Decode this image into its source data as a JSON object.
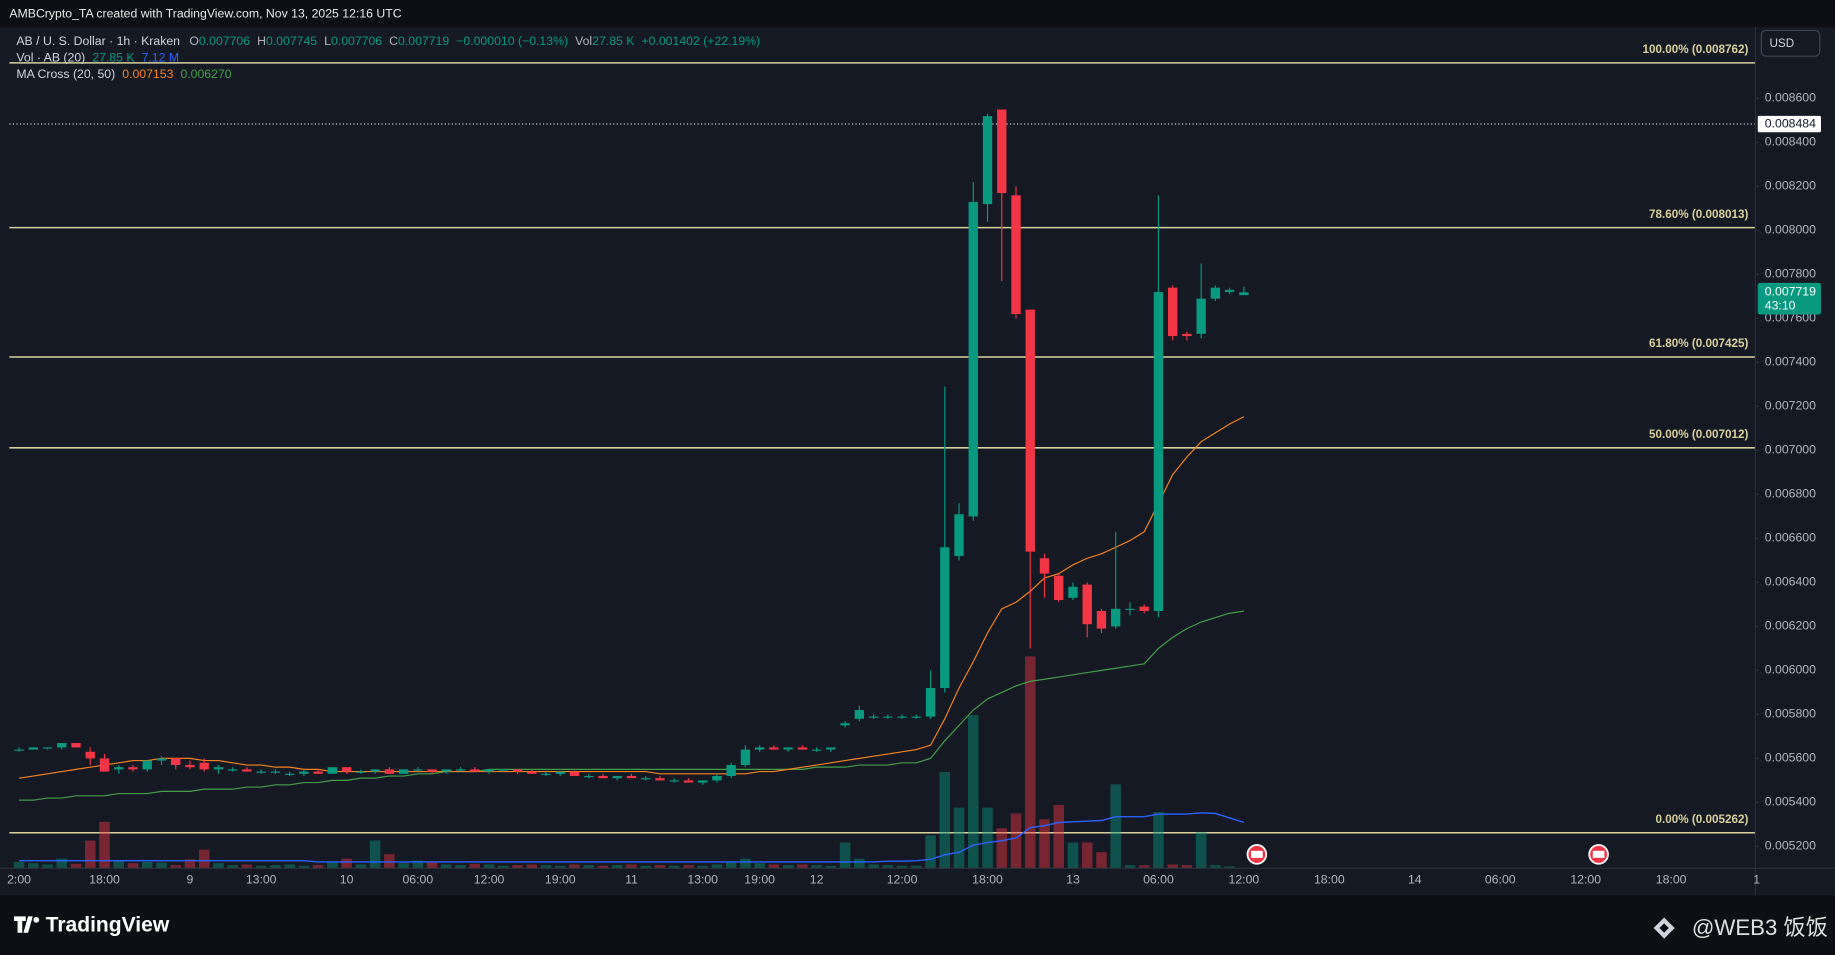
{
  "chart_data": {
    "type": "candlestick",
    "title": "AMBCrypto_TA created with TradingView.com, Nov 13, 2025 12:16 UTC",
    "legend": {
      "symbol": "AB / U. S. Dollar · 1h · Kraken",
      "o": "O",
      "h": "H",
      "l": "L",
      "c": "C",
      "change": "−0.000010 (−0.13%)",
      "vol": "Vol",
      "vol_value": "27.85 K",
      "vol_change": "+0.001402 (+22.19%)",
      "vol_study": "Vol · AB (20)",
      "vol_study_value": "27.85 K",
      "vol_study_ma": "7.12 M",
      "ma_study": "MA Cross (20, 50)",
      "ma_fast": "0.007153",
      "ma_slow": "0.006270"
    },
    "currency": "USD",
    "countdown": "43:10",
    "brand": "TradingView",
    "watermark": "@WEB3 饭饭",
    "up_color": "#089981",
    "down_color": "#f23645",
    "categories": [
      "2:00",
      null,
      null,
      null,
      null,
      null,
      "18:00",
      null,
      null,
      null,
      null,
      null,
      "9",
      null,
      null,
      null,
      null,
      "13:00",
      null,
      null,
      null,
      null,
      null,
      "10",
      null,
      null,
      null,
      null,
      "06:00",
      null,
      null,
      null,
      null,
      "12:00",
      null,
      null,
      null,
      null,
      "19:00",
      null,
      null,
      null,
      null,
      "11",
      null,
      null,
      null,
      null,
      "13:00",
      null,
      null,
      null,
      "19:00",
      null,
      null,
      null,
      "12",
      null,
      null,
      null,
      null,
      null,
      "12:00",
      null,
      null,
      null,
      null,
      null,
      "18:00",
      null,
      null,
      null,
      null,
      null,
      "13",
      null,
      null,
      null,
      null,
      null,
      "06:00",
      null,
      null,
      null,
      null,
      null,
      "12:00",
      null,
      null,
      null,
      null,
      null,
      "18:00",
      null,
      null,
      null,
      null,
      null,
      "14",
      null,
      null,
      null,
      null,
      null,
      "06:00",
      null,
      null,
      null,
      null,
      null,
      "12:00",
      null,
      null,
      null,
      null,
      null,
      "18:00",
      null,
      null,
      null,
      null,
      null,
      "1"
    ],
    "open": [
      0.00564,
      0.00564,
      0.00565,
      0.00565,
      0.00567,
      0.00563,
      0.0056,
      0.00555,
      0.00556,
      0.00555,
      0.00559,
      0.0056,
      0.00557,
      0.00558,
      0.00555,
      0.00555,
      0.00555,
      0.00554,
      0.00554,
      0.00553,
      0.00553,
      0.00554,
      0.00553,
      0.00556,
      0.00554,
      0.00554,
      0.00555,
      0.00553,
      0.00555,
      0.00555,
      0.00554,
      0.00555,
      0.00555,
      0.00554,
      0.00555,
      0.00555,
      0.00554,
      0.00553,
      0.00553,
      0.00554,
      0.00552,
      0.00552,
      0.00551,
      0.00552,
      0.00551,
      0.00551,
      0.0055,
      0.0055,
      0.00549,
      0.0055,
      0.00552,
      0.00557,
      0.00564,
      0.00565,
      0.00564,
      0.00565,
      0.00564,
      0.00564,
      0.00575,
      0.00578,
      0.00579,
      0.00579,
      0.00579,
      0.00579,
      0.00579,
      0.00592,
      0.00652,
      0.0067,
      0.00812,
      0.00855,
      0.00816,
      0.00764,
      0.00651,
      0.00643,
      0.00633,
      0.00639,
      0.00627,
      0.0062,
      0.00628,
      0.00629,
      0.00627,
      0.00774,
      0.00753,
      0.00753,
      0.00769,
      0.00772,
      0.007706,
      null,
      null,
      null,
      null,
      null,
      null,
      null,
      null,
      null,
      null,
      null,
      null,
      null,
      null,
      null,
      null,
      null,
      null,
      null,
      null,
      null,
      null,
      null,
      null,
      null,
      null,
      null,
      null,
      null,
      null,
      null,
      null,
      null,
      null,
      null,
      null
    ],
    "high": [
      0.00565,
      0.00565,
      0.00565,
      0.00567,
      0.00567,
      0.00565,
      0.00562,
      0.00557,
      0.00557,
      0.00559,
      0.00561,
      0.0056,
      0.00559,
      0.0056,
      0.00557,
      0.00556,
      0.00556,
      0.00555,
      0.00555,
      0.00554,
      0.00555,
      0.00555,
      0.00556,
      0.00556,
      0.00555,
      0.00555,
      0.00556,
      0.00555,
      0.00556,
      0.00555,
      0.00555,
      0.00556,
      0.00556,
      0.00555,
      0.00555,
      0.00555,
      0.00555,
      0.00554,
      0.00554,
      0.00554,
      0.00553,
      0.00553,
      0.00552,
      0.00553,
      0.00552,
      0.00552,
      0.00551,
      0.00551,
      0.0055,
      0.00553,
      0.00558,
      0.00566,
      0.00566,
      0.00566,
      0.00565,
      0.00566,
      0.00565,
      0.00565,
      0.00577,
      0.00584,
      0.0058,
      0.0058,
      0.0058,
      0.0058,
      0.006,
      0.00729,
      0.00676,
      0.00822,
      0.00853,
      0.00855,
      0.0082,
      0.00764,
      0.00653,
      0.00644,
      0.0064,
      0.0064,
      0.00628,
      0.00663,
      0.00631,
      0.0063,
      0.00816,
      0.00775,
      0.00754,
      0.00785,
      0.00775,
      0.00774,
      0.007745,
      null,
      null,
      null,
      null,
      null,
      null,
      null,
      null,
      null,
      null,
      null,
      null,
      null,
      null,
      null,
      null,
      null,
      null,
      null,
      null,
      null,
      null,
      null,
      null,
      null,
      null,
      null,
      null,
      null,
      null,
      null,
      null,
      null,
      null,
      null,
      null
    ],
    "low": [
      0.00563,
      0.00564,
      0.00564,
      0.00564,
      0.00565,
      0.00557,
      0.00554,
      0.00553,
      0.00554,
      0.00554,
      0.00557,
      0.00555,
      0.00555,
      0.00554,
      0.00553,
      0.00554,
      0.00554,
      0.00553,
      0.00553,
      0.00552,
      0.00552,
      0.00553,
      0.00553,
      0.00553,
      0.00553,
      0.00553,
      0.00553,
      0.00553,
      0.00554,
      0.00553,
      0.00553,
      0.00554,
      0.00554,
      0.00553,
      0.00554,
      0.00553,
      0.00553,
      0.00552,
      0.00552,
      0.00552,
      0.00551,
      0.00551,
      0.0055,
      0.00551,
      0.0055,
      0.0055,
      0.00549,
      0.00549,
      0.00548,
      0.00549,
      0.00551,
      0.00556,
      0.00563,
      0.00564,
      0.00563,
      0.00564,
      0.00563,
      0.00563,
      0.00574,
      0.00577,
      0.00578,
      0.00578,
      0.00578,
      0.00578,
      0.00578,
      0.0059,
      0.0065,
      0.00668,
      0.00804,
      0.00777,
      0.0076,
      0.0061,
      0.00633,
      0.00631,
      0.00632,
      0.00615,
      0.00617,
      0.00619,
      0.00625,
      0.00626,
      0.00624,
      0.0075,
      0.0075,
      0.00751,
      0.00768,
      0.00771,
      0.007706,
      null,
      null,
      null,
      null,
      null,
      null,
      null,
      null,
      null,
      null,
      null,
      null,
      null,
      null,
      null,
      null,
      null,
      null,
      null,
      null,
      null,
      null,
      null,
      null,
      null,
      null,
      null,
      null,
      null,
      null,
      null,
      null,
      null,
      null,
      null,
      null
    ],
    "close": [
      0.00564,
      0.00565,
      0.00565,
      0.00567,
      0.00565,
      0.0056,
      0.00554,
      0.00556,
      0.00555,
      0.00559,
      0.0056,
      0.00557,
      0.00556,
      0.00555,
      0.00556,
      0.00555,
      0.00554,
      0.00554,
      0.00554,
      0.00553,
      0.00554,
      0.00553,
      0.00556,
      0.00554,
      0.00554,
      0.00555,
      0.00553,
      0.00555,
      0.00555,
      0.00554,
      0.00555,
      0.00555,
      0.00554,
      0.00555,
      0.00555,
      0.00554,
      0.00553,
      0.00553,
      0.00554,
      0.00552,
      0.00552,
      0.00551,
      0.00552,
      0.00551,
      0.00551,
      0.0055,
      0.0055,
      0.00549,
      0.0055,
      0.00552,
      0.00557,
      0.00564,
      0.00565,
      0.00564,
      0.00565,
      0.00564,
      0.00564,
      0.00565,
      0.00576,
      0.00582,
      0.00579,
      0.00579,
      0.00579,
      0.00579,
      0.00592,
      0.00656,
      0.00671,
      0.00813,
      0.00852,
      0.00817,
      0.00762,
      0.00654,
      0.00644,
      0.00632,
      0.00638,
      0.00621,
      0.00619,
      0.00628,
      0.00628,
      0.00627,
      0.00772,
      0.00752,
      0.00752,
      0.00769,
      0.00774,
      0.00773,
      0.007719,
      null,
      null,
      null,
      null,
      null,
      null,
      null,
      null,
      null,
      null,
      null,
      null,
      null,
      null,
      null,
      null,
      null,
      null,
      null,
      null,
      null,
      null,
      null,
      null,
      null,
      null,
      null,
      null,
      null,
      null,
      null,
      null,
      null,
      null,
      null,
      null
    ],
    "volume": {
      "vlim": [
        0,
        130
      ],
      "values": [
        1.0,
        0.8,
        0.6,
        1.5,
        0.7,
        4.3,
        7.2,
        1.2,
        0.8,
        1.0,
        0.9,
        0.5,
        1.4,
        2.9,
        0.8,
        0.5,
        0.6,
        0.4,
        0.5,
        0.6,
        0.4,
        0.5,
        0.9,
        1.5,
        0.6,
        4.3,
        2.2,
        0.8,
        1.2,
        1.0,
        0.6,
        0.5,
        0.7,
        0.6,
        0.4,
        0.5,
        0.6,
        0.5,
        0.4,
        0.6,
        0.5,
        0.4,
        0.5,
        0.6,
        0.4,
        0.5,
        0.4,
        0.5,
        0.4,
        0.6,
        1.0,
        1.5,
        0.8,
        0.6,
        0.5,
        0.6,
        0.5,
        0.4,
        4.0,
        1.5,
        0.6,
        0.5,
        0.4,
        0.4,
        5.1,
        14.9,
        9.4,
        23.7,
        9.4,
        6.2,
        8.5,
        32.8,
        7.6,
        9.8,
        4.0,
        4.0,
        2.5,
        13.0,
        0.5,
        0.5,
        8.7,
        0.6,
        0.5,
        5.6,
        0.5,
        0.3,
        0.02785,
        null,
        null,
        null,
        null,
        null,
        null,
        null,
        null,
        null,
        null,
        null,
        null,
        null,
        null,
        null,
        null,
        null,
        null,
        null,
        null,
        null,
        null,
        null,
        null,
        null,
        null,
        null,
        null,
        null,
        null,
        null,
        null,
        null,
        null,
        null,
        null
      ]
    },
    "volume_ma": {
      "color": "#2962ff",
      "values": [
        1.2,
        1.2,
        1.2,
        1.2,
        1.2,
        1.2,
        1.2,
        1.2,
        1.2,
        1.2,
        1.2,
        1.2,
        1.2,
        1.2,
        1.2,
        1.2,
        1.2,
        1.2,
        1.2,
        1.2,
        1.2,
        1.0,
        1.0,
        1.0,
        1.0,
        1.0,
        1.0,
        1.0,
        1.0,
        1.0,
        1.0,
        1.0,
        1.0,
        1.0,
        1.0,
        1.0,
        1.0,
        1.0,
        1.0,
        1.0,
        1.0,
        1.0,
        1.0,
        1.0,
        1.0,
        1.0,
        1.0,
        1.0,
        1.0,
        1.0,
        1.0,
        1.0,
        1.0,
        1.0,
        1.0,
        1.0,
        1.0,
        1.0,
        1.0,
        1.0,
        1.0,
        1.1,
        1.1,
        1.2,
        1.4,
        2.1,
        2.5,
        3.6,
        4.0,
        4.3,
        4.7,
        6.3,
        6.6,
        7.1,
        7.2,
        7.3,
        7.4,
        8.0,
        8.0,
        8.0,
        8.4,
        8.4,
        8.4,
        8.6,
        8.5,
        7.8,
        7.12,
        null,
        null,
        null,
        null,
        null,
        null,
        null,
        null,
        null,
        null,
        null,
        null,
        null,
        null,
        null,
        null,
        null,
        null,
        null,
        null,
        null,
        null,
        null,
        null,
        null,
        null,
        null,
        null,
        null,
        null,
        null,
        null,
        null,
        null,
        null,
        null
      ]
    },
    "ma_fast": {
      "color": "#f7821b",
      "values": [
        0.00551,
        0.00552,
        0.00553,
        0.00554,
        0.00555,
        0.00556,
        0.00557,
        0.00558,
        0.00559,
        0.00559,
        0.0056,
        0.0056,
        0.0056,
        0.00559,
        0.00559,
        0.00558,
        0.00557,
        0.00557,
        0.00556,
        0.00556,
        0.00555,
        0.00555,
        0.00554,
        0.00554,
        0.00554,
        0.00554,
        0.00554,
        0.00554,
        0.00554,
        0.00554,
        0.00554,
        0.00554,
        0.00554,
        0.00554,
        0.00554,
        0.00554,
        0.00554,
        0.00554,
        0.00554,
        0.00554,
        0.00554,
        0.00554,
        0.00554,
        0.00554,
        0.00554,
        0.00553,
        0.00553,
        0.00553,
        0.00553,
        0.00553,
        0.00553,
        0.00553,
        0.00554,
        0.00554,
        0.00555,
        0.00556,
        0.00557,
        0.00558,
        0.00559,
        0.0056,
        0.00561,
        0.00562,
        0.00563,
        0.00564,
        0.00566,
        0.00578,
        0.00592,
        0.00604,
        0.00617,
        0.00628,
        0.00631,
        0.00636,
        0.00642,
        0.00644,
        0.00648,
        0.00651,
        0.00653,
        0.00656,
        0.00659,
        0.00663,
        0.00676,
        0.00689,
        0.00697,
        0.00704,
        0.00708,
        0.00712,
        0.007153,
        null,
        null,
        null,
        null,
        null,
        null,
        null,
        null,
        null,
        null,
        null,
        null,
        null,
        null,
        null,
        null,
        null,
        null,
        null,
        null,
        null,
        null,
        null,
        null,
        null,
        null,
        null,
        null,
        null,
        null,
        null,
        null,
        null,
        null,
        null,
        null
      ]
    },
    "ma_slow": {
      "color": "#43a047",
      "values": [
        0.00541,
        0.00541,
        0.00542,
        0.00542,
        0.00543,
        0.00543,
        0.00543,
        0.00544,
        0.00544,
        0.00544,
        0.00545,
        0.00545,
        0.00545,
        0.00546,
        0.00546,
        0.00546,
        0.00547,
        0.00547,
        0.00548,
        0.00548,
        0.00549,
        0.00549,
        0.0055,
        0.0055,
        0.00551,
        0.00551,
        0.00552,
        0.00552,
        0.00553,
        0.00553,
        0.00554,
        0.00554,
        0.00554,
        0.00555,
        0.00555,
        0.00555,
        0.00555,
        0.00555,
        0.00555,
        0.00555,
        0.00555,
        0.00555,
        0.00555,
        0.00555,
        0.00555,
        0.00555,
        0.00555,
        0.00555,
        0.00555,
        0.00555,
        0.00555,
        0.00555,
        0.00555,
        0.00555,
        0.00555,
        0.00555,
        0.00556,
        0.00556,
        0.00556,
        0.00557,
        0.00557,
        0.00557,
        0.00558,
        0.00558,
        0.0056,
        0.00568,
        0.00575,
        0.00582,
        0.00587,
        0.0059,
        0.00593,
        0.00595,
        0.00596,
        0.00597,
        0.00598,
        0.00599,
        0.006,
        0.00601,
        0.00602,
        0.00603,
        0.0061,
        0.00615,
        0.00619,
        0.00622,
        0.00624,
        0.00626,
        0.00627,
        null,
        null,
        null,
        null,
        null,
        null,
        null,
        null,
        null,
        null,
        null,
        null,
        null,
        null,
        null,
        null,
        null,
        null,
        null,
        null,
        null,
        null,
        null,
        null,
        null,
        null,
        null,
        null,
        null,
        null,
        null,
        null,
        null,
        null,
        null,
        null
      ]
    },
    "fib_color": "#d8d19a",
    "fib_levels": [
      {
        "value": 0.008762,
        "label": "100.00% (0.008762)"
      },
      {
        "value": 0.008013,
        "label": "78.60% (0.008013)"
      },
      {
        "value": 0.007425,
        "label": "61.80% (0.007425)"
      },
      {
        "value": 0.007012,
        "label": "50.00% (0.007012)"
      },
      {
        "value": 0.005262,
        "label": "0.00% (0.005262)"
      }
    ],
    "marker_price": 0.008484,
    "ylim": [
      0.0051,
      0.00892
    ],
    "yticks": [
      {
        "value": 0.0052,
        "label": "0.005200"
      },
      {
        "value": 0.0054,
        "label": "0.005400"
      },
      {
        "value": 0.0056,
        "label": "0.005600"
      },
      {
        "value": 0.0058,
        "label": "0.005800"
      },
      {
        "value": 0.006,
        "label": "0.006000"
      },
      {
        "value": 0.0062,
        "label": "0.006200"
      },
      {
        "value": 0.0064,
        "label": "0.006400"
      },
      {
        "value": 0.0066,
        "label": "0.006600"
      },
      {
        "value": 0.0068,
        "label": "0.006800"
      },
      {
        "value": 0.007,
        "label": "0.007000"
      },
      {
        "value": 0.0072,
        "label": "0.007200"
      },
      {
        "value": 0.0074,
        "label": "0.007400"
      },
      {
        "value": 0.0076,
        "label": "0.007600"
      },
      {
        "value": 0.0078,
        "label": "0.007800"
      },
      {
        "value": 0.008,
        "label": "0.008000"
      },
      {
        "value": 0.0082,
        "label": "0.008200"
      },
      {
        "value": 0.0084,
        "label": "0.008400"
      },
      {
        "value": 0.0086,
        "label": "0.008600"
      }
    ],
    "grid": false
  }
}
